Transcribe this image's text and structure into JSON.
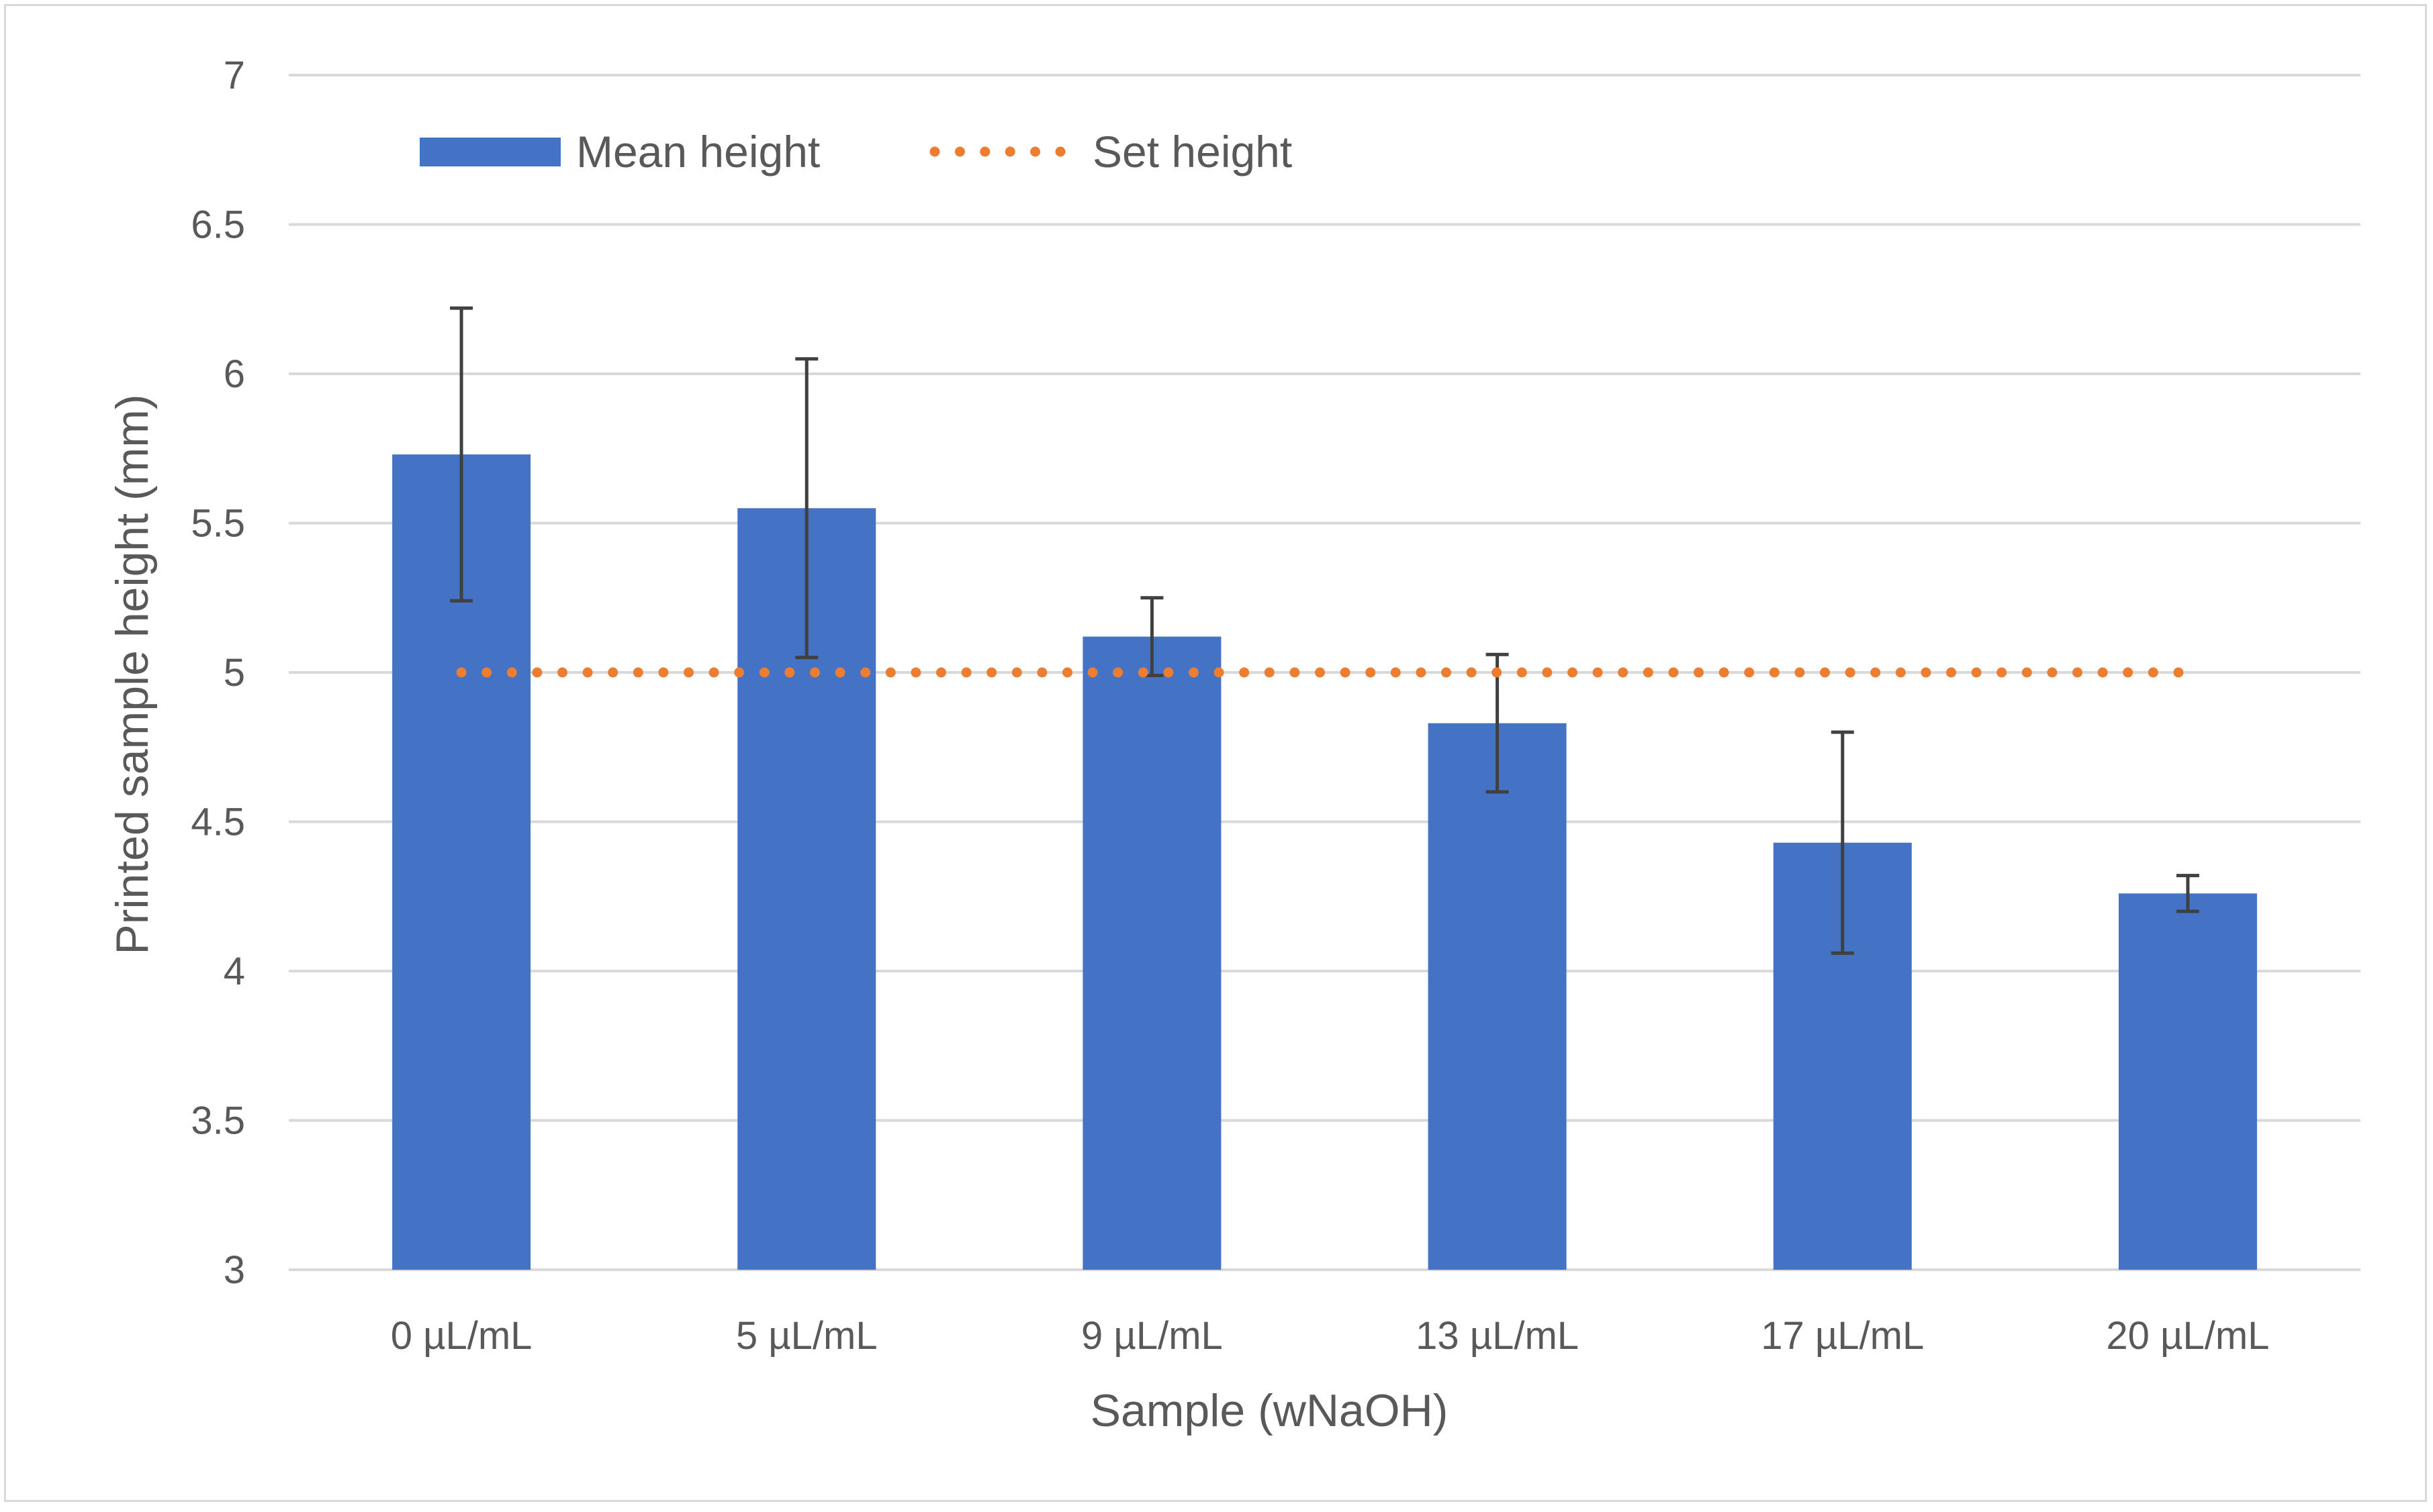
{
  "chart_data": {
    "type": "bar",
    "title": "",
    "xlabel": "Sample (wNaOH)",
    "ylabel": "Printed sample height (mm)",
    "ylim": [
      3,
      7
    ],
    "yticks": [
      "3",
      "3.5",
      "4",
      "4.5",
      "5",
      "5.5",
      "6",
      "6.5",
      "7"
    ],
    "categories": [
      "0 µL/mL",
      "5 µL/mL",
      "9 µL/mL",
      "13 µL/mL",
      "17 µL/mL",
      "20 µL/mL"
    ],
    "series": [
      {
        "name": "Mean height",
        "kind": "bar",
        "color": "#4472c4",
        "values": [
          5.73,
          5.55,
          5.12,
          4.83,
          4.43,
          4.26
        ],
        "error": [
          0.49,
          0.5,
          0.13,
          0.23,
          0.37,
          0.06
        ]
      },
      {
        "name": "Set height",
        "kind": "line",
        "style": "dotted",
        "color": "#ed7d31",
        "values": [
          5,
          5,
          5,
          5,
          5,
          5
        ]
      }
    ],
    "grid": true,
    "legend_position": "top-left"
  }
}
